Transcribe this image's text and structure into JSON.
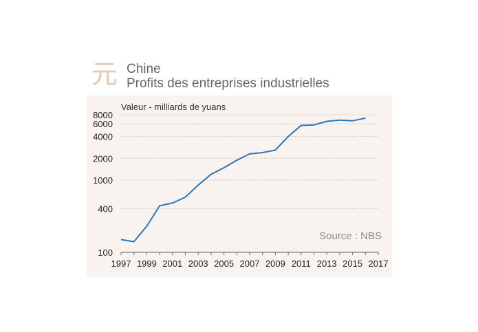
{
  "header": {
    "logo_char": "元",
    "title": "Chine",
    "subtitle": "Profits des entreprises industrielles"
  },
  "colors": {
    "logo": "#e3c8b3",
    "line": "#2f74b5",
    "panel": "#f8f3ef",
    "grid": "#c8c8c8"
  },
  "source_label": "Source : NBS",
  "chart_data": {
    "type": "line",
    "title": "Chine",
    "subtitle": "Profits des entreprises industrielles",
    "ylabel": "Valeur - milliards de yuans",
    "xlabel": "",
    "yscale": "log",
    "ylim": [
      100,
      8000
    ],
    "xlim": [
      1997,
      2017
    ],
    "grid": "horizontal",
    "y_ticks": [
      100,
      400,
      1000,
      2000,
      4000,
      6000,
      8000
    ],
    "x_ticks": [
      1997,
      1999,
      2001,
      2003,
      2005,
      2007,
      2009,
      2011,
      2013,
      2015,
      2017
    ],
    "series": [
      {
        "x": [
          1997,
          1998,
          1999,
          2000,
          2001,
          2002,
          2003,
          2004,
          2005,
          2006,
          2007,
          2008,
          2009,
          2010,
          2011,
          2012,
          2013,
          2014,
          2015,
          2016
        ],
        "values": [
          150,
          140,
          230,
          440,
          480,
          580,
          850,
          1200,
          1480,
          1880,
          2300,
          2400,
          2600,
          4000,
          5700,
          5800,
          6500,
          6750,
          6600,
          7200
        ]
      }
    ]
  }
}
